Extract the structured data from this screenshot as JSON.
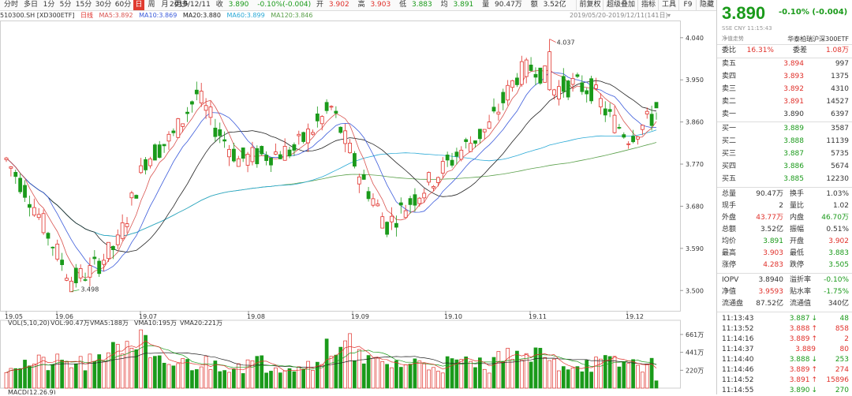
{
  "toolbar": {
    "tabs": [
      "分时",
      "多日",
      "1分",
      "5分",
      "15分",
      "30分",
      "60分",
      "日",
      "周",
      "月",
      "更多"
    ],
    "active_tab": "日",
    "date": "2019/12/11",
    "close_label": "收",
    "close": "3.890",
    "change": "-0.10%(-0.004)",
    "open_label": "开",
    "open": "3.902",
    "high_label": "高",
    "high": "3.903",
    "low_label": "低",
    "low": "3.883",
    "avg_label": "均",
    "avg": "3.891",
    "vol_label": "量",
    "vol": "90.47万",
    "amt_label": "额",
    "amt": "3.52亿",
    "right_buttons": [
      "前复权",
      "超级叠加",
      "指标",
      "工具",
      "F9",
      "隐藏"
    ]
  },
  "legend": {
    "symbol": "510300.SH [XD300ETF]",
    "line": "日线",
    "ma5": "MA5:3.892",
    "ma10": "MA10:3.869",
    "ma20": "MA20:3.880",
    "ma60": "MA60:3.899",
    "ma120": "MA120:3.846",
    "range": "2019/05/20-2019/12/11(141日)"
  },
  "price_axis": [
    "4.040",
    "3.950",
    "3.860",
    "3.770",
    "3.680",
    "3.590",
    "3.500"
  ],
  "time_axis": [
    "19.05",
    "19.06",
    "19.07",
    "19.08",
    "19.09",
    "19.10",
    "19.11",
    "19.12"
  ],
  "annotations": {
    "high": "4.037",
    "low": "3.498"
  },
  "vol_legend": {
    "label": "VOL(5,10,20)",
    "vol": "VOL:90.47万",
    "vma5": "VMA5:188万",
    "vma10": "VMA10:195万",
    "vma20": "VMA20:221万"
  },
  "vol_axis": [
    "661万",
    "441万",
    "220万"
  ],
  "macd_cut": "MACD(12,26,9)",
  "side": {
    "price": "3.890",
    "change": "-0.10% (-0.004)",
    "subline": "SSE  CNY  11:15:43",
    "nav_label": "净值走势",
    "name": "华泰柏瑞沪深300ETF",
    "weibi_label": "委比",
    "weibi": "16.31%",
    "weicha_label": "委差",
    "weicha": "1.08万",
    "asks": [
      {
        "label": "卖五",
        "price": "3.894",
        "vol": "997"
      },
      {
        "label": "卖四",
        "price": "3.893",
        "vol": "1375"
      },
      {
        "label": "卖三",
        "price": "3.892",
        "vol": "4310"
      },
      {
        "label": "卖二",
        "price": "3.891",
        "vol": "14527"
      },
      {
        "label": "卖一",
        "price": "3.890",
        "vol": "6397"
      }
    ],
    "bids": [
      {
        "label": "买一",
        "price": "3.889",
        "vol": "3587"
      },
      {
        "label": "买二",
        "price": "3.888",
        "vol": "11139"
      },
      {
        "label": "买三",
        "price": "3.887",
        "vol": "5735"
      },
      {
        "label": "买四",
        "price": "3.886",
        "vol": "5674"
      },
      {
        "label": "买五",
        "price": "3.885",
        "vol": "12230"
      }
    ],
    "stats": [
      {
        "l1": "总量",
        "v1": "90.47万",
        "l2": "换手",
        "v2": "1.03%",
        "c1": "",
        "c2": ""
      },
      {
        "l1": "现手",
        "v1": "2",
        "l2": "量比",
        "v2": "1.02",
        "c1": "",
        "c2": ""
      },
      {
        "l1": "外盘",
        "v1": "43.77万",
        "l2": "内盘",
        "v2": "46.70万",
        "c1": "red",
        "c2": "green"
      },
      {
        "l1": "总额",
        "v1": "3.52亿",
        "l2": "振幅",
        "v2": "0.51%",
        "c1": "",
        "c2": ""
      },
      {
        "l1": "均价",
        "v1": "3.891",
        "l2": "开盘",
        "v2": "3.902",
        "c1": "green",
        "c2": "red"
      },
      {
        "l1": "最高",
        "v1": "3.903",
        "l2": "最低",
        "v2": "3.883",
        "c1": "red",
        "c2": "green"
      },
      {
        "l1": "涨停",
        "v1": "4.283",
        "l2": "跌停",
        "v2": "3.505",
        "c1": "red",
        "c2": "green"
      }
    ],
    "stats2": [
      {
        "l1": "IOPV",
        "v1": "3.8940",
        "l2": "溢折率",
        "v2": "-0.10%",
        "c1": "",
        "c2": "green"
      },
      {
        "l1": "净值",
        "v1": "3.9593",
        "l2": "贴水率",
        "v2": "-1.75%",
        "c1": "red",
        "c2": "green"
      },
      {
        "l1": "流通盘",
        "v1": "87.52亿",
        "l2": "流通值",
        "v2": "340亿",
        "c1": "",
        "c2": ""
      }
    ],
    "trades": [
      {
        "time": "11:13:43",
        "price": "3.887",
        "dir": "down",
        "vol": "48",
        "color": "green"
      },
      {
        "time": "11:13:52",
        "price": "3.888",
        "dir": "up",
        "vol": "858",
        "color": "red"
      },
      {
        "time": "11:14:16",
        "price": "3.889",
        "dir": "up",
        "vol": "2",
        "color": "red"
      },
      {
        "time": "11:14:37",
        "price": "3.889",
        "dir": "",
        "vol": "80",
        "color": "red"
      },
      {
        "time": "11:14:40",
        "price": "3.888",
        "dir": "down",
        "vol": "253",
        "color": "green"
      },
      {
        "time": "11:14:46",
        "price": "3.889",
        "dir": "up",
        "vol": "274",
        "color": "red"
      },
      {
        "time": "11:14:52",
        "price": "3.891",
        "dir": "up",
        "vol": "15896",
        "color": "red"
      },
      {
        "time": "11:14:55",
        "price": "3.890",
        "dir": "down",
        "vol": "270",
        "color": "green"
      }
    ]
  },
  "colors": {
    "up": "#e0302a",
    "down": "#1a9a1a",
    "ma5": "#d9534f",
    "ma10": "#3b5bdb",
    "ma20": "#222222",
    "ma60": "#29a9d6",
    "ma120": "#5aa04a"
  },
  "chart_data": {
    "type": "candlestick",
    "ylim": [
      3.46,
      4.07
    ],
    "start_price": 3.78,
    "end_price": 3.89,
    "low_point": 3.498,
    "high_point": 4.037
  }
}
